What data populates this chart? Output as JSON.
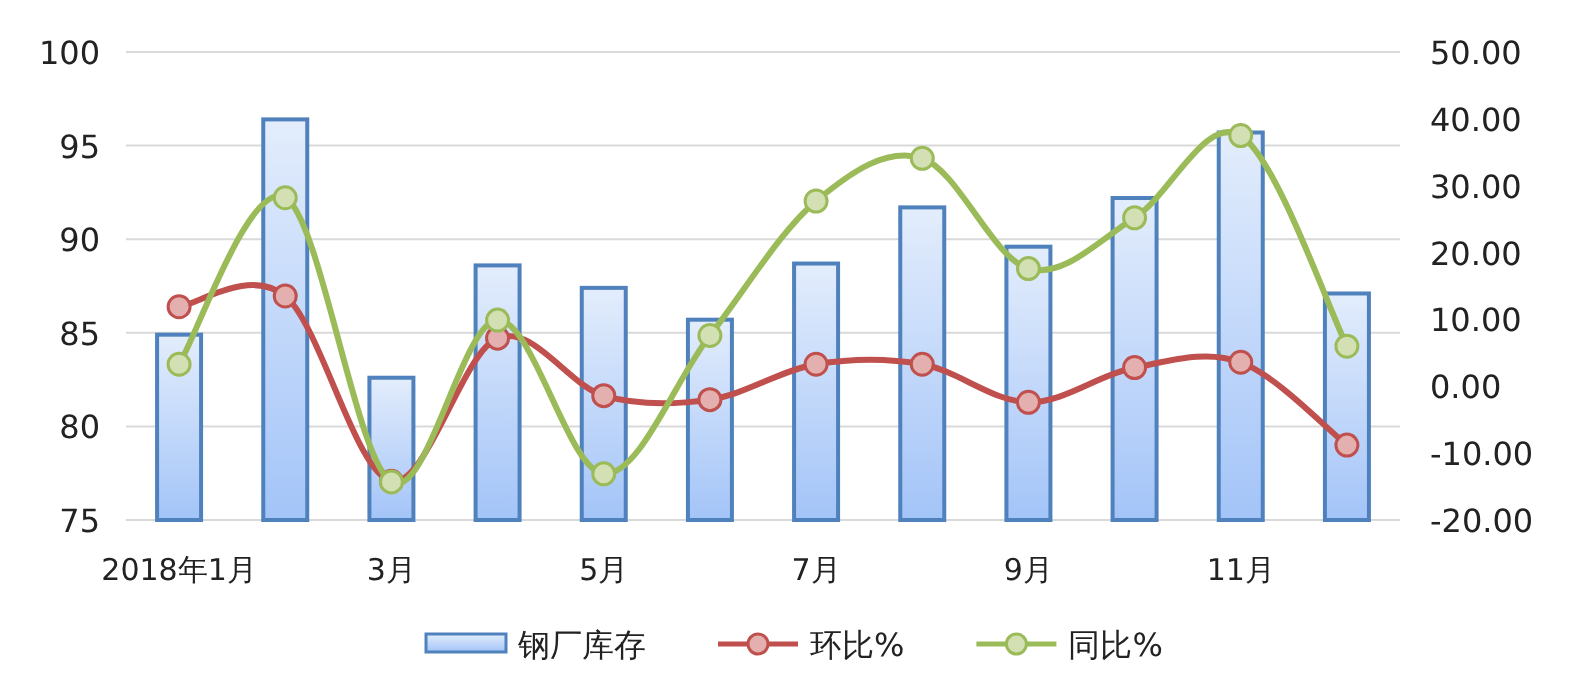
{
  "chart_data": {
    "type": "bar",
    "categories": [
      "2018年1月",
      null,
      "3月",
      null,
      "5月",
      null,
      "7月",
      null,
      "9月",
      null,
      "11月",
      null
    ],
    "series": [
      {
        "name": "钢厂库存",
        "color": "#4f81bd",
        "values": [
          84.9,
          96.4,
          82.6,
          88.6,
          87.4,
          85.7,
          88.7,
          91.7,
          89.6,
          92.2,
          95.7,
          87.1
        ]
      },
      {
        "name": "环比%",
        "type": "line",
        "axis": "y2",
        "color": "#c0504d",
        "values": [
          11.9,
          13.5,
          -14.2,
          7.2,
          -1.4,
          -2.0,
          3.3,
          3.3,
          -2.4,
          2.8,
          3.6,
          -8.8
        ]
      },
      {
        "name": "同比%",
        "type": "line",
        "axis": "y2",
        "color": "#9bbb59",
        "values": [
          3.3,
          28.2,
          -14.3,
          9.9,
          -13.1,
          7.6,
          27.7,
          34.1,
          17.6,
          25.2,
          37.5,
          6.0
        ]
      }
    ],
    "ylim": [
      75,
      100
    ],
    "yticks": [
      75,
      80,
      85,
      90,
      95,
      100
    ],
    "y2lim": [
      -20,
      50
    ],
    "y2ticks": [
      {
        "value": -20,
        "label": "-20.00"
      },
      {
        "value": -10,
        "label": "-10.00"
      },
      {
        "value": 0,
        "label": "0.00"
      },
      {
        "value": 10,
        "label": "10.00"
      },
      {
        "value": 20,
        "label": "20.00"
      },
      {
        "value": 30,
        "label": "30.00"
      },
      {
        "value": 40,
        "label": "40.00"
      },
      {
        "value": 50,
        "label": "50.00"
      }
    ],
    "grid": "y",
    "legend": "bottom",
    "marker": "circle"
  }
}
